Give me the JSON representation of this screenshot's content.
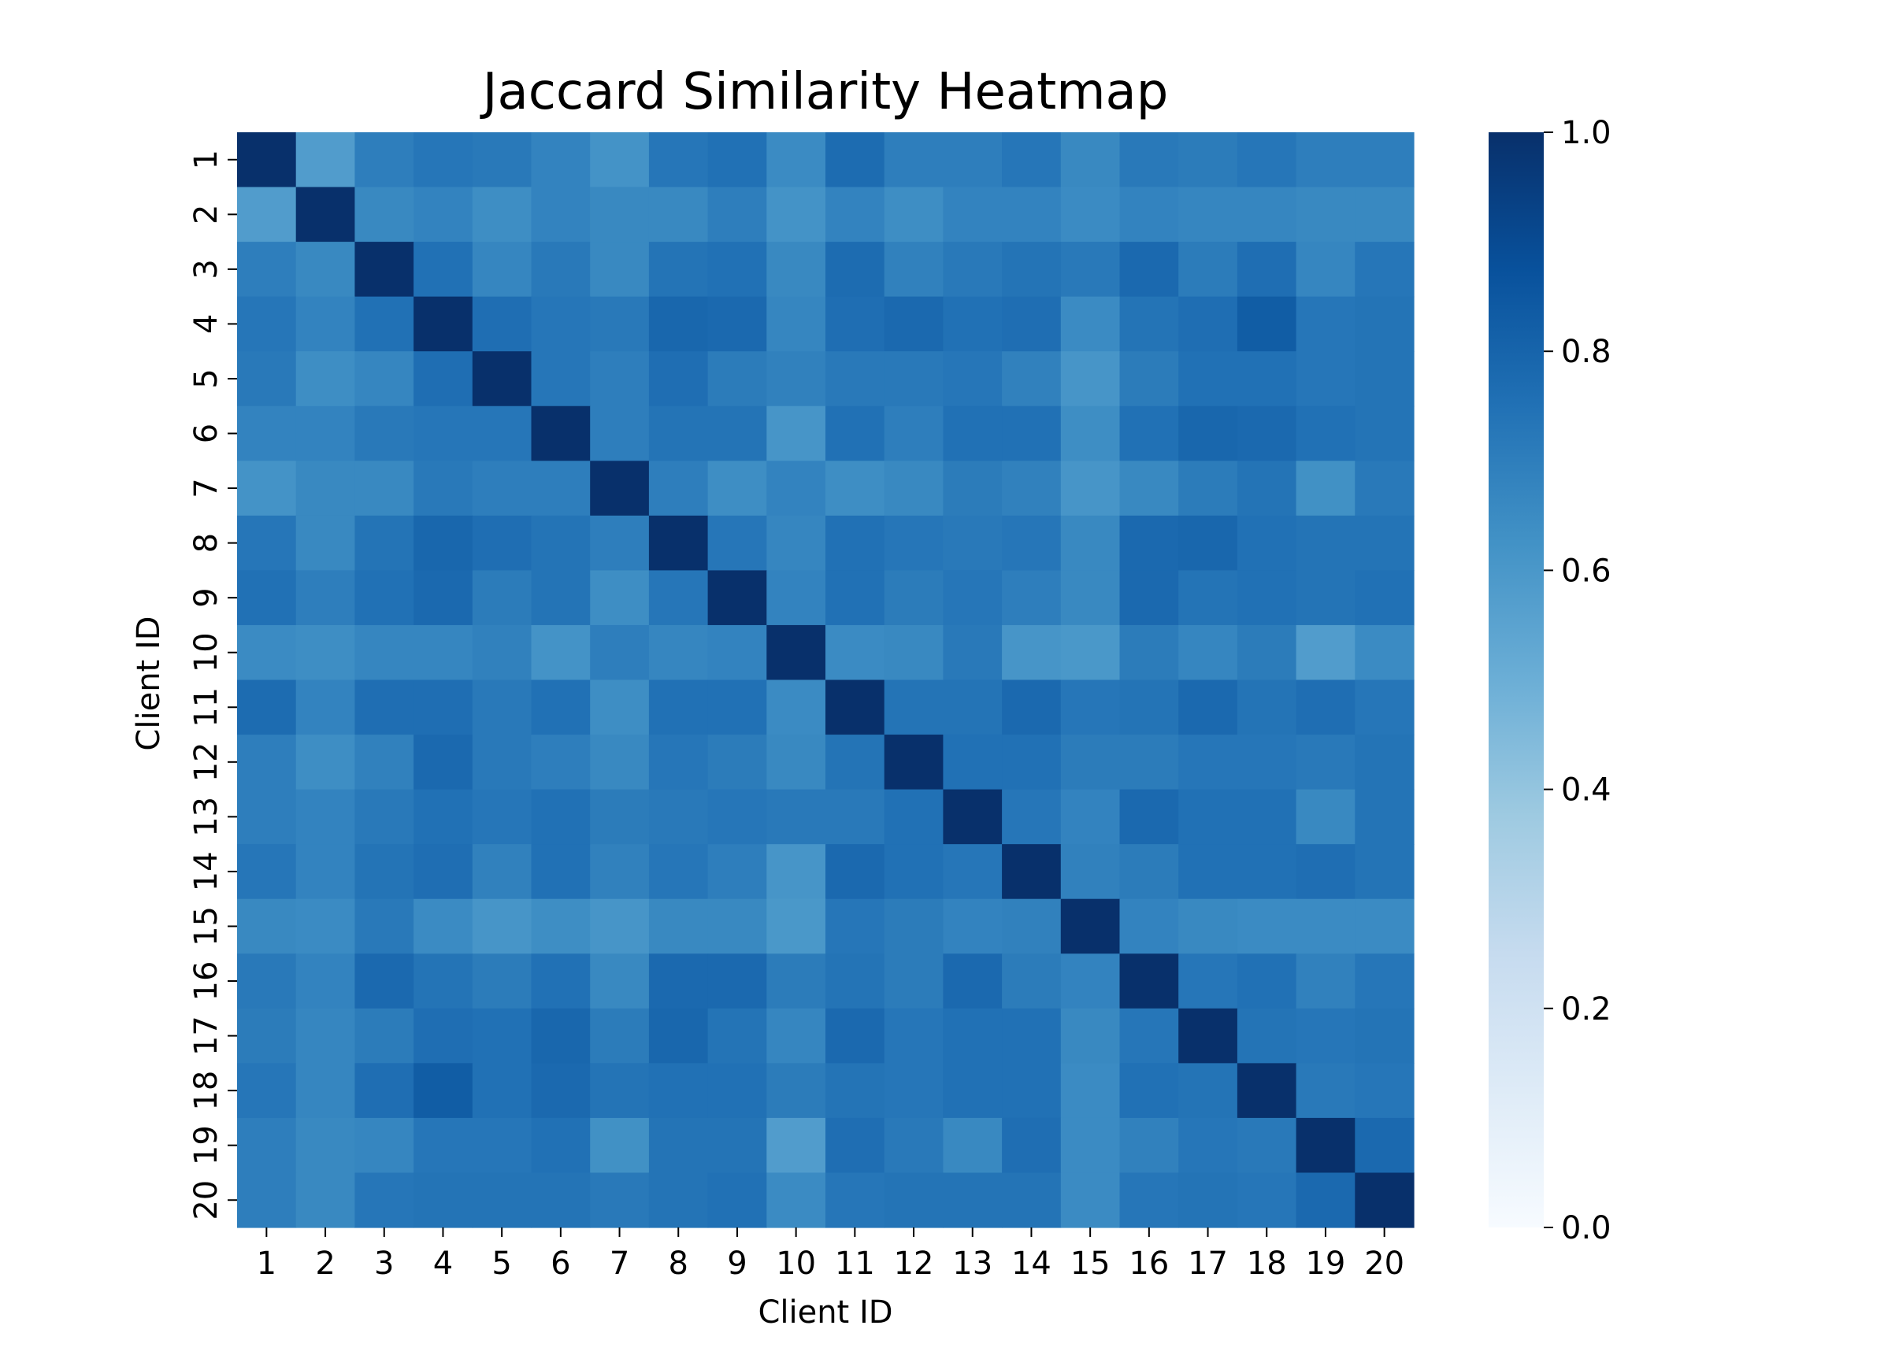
{
  "chart_data": {
    "type": "heatmap",
    "title": "Jaccard Similarity Heatmap",
    "xlabel": "Client ID",
    "ylabel": "Client ID",
    "x_categories": [
      "1",
      "2",
      "3",
      "4",
      "5",
      "6",
      "7",
      "8",
      "9",
      "10",
      "11",
      "12",
      "13",
      "14",
      "15",
      "16",
      "17",
      "18",
      "19",
      "20"
    ],
    "y_categories": [
      "1",
      "2",
      "3",
      "4",
      "5",
      "6",
      "7",
      "8",
      "9",
      "10",
      "11",
      "12",
      "13",
      "14",
      "15",
      "16",
      "17",
      "18",
      "19",
      "20"
    ],
    "values": [
      [
        1.0,
        0.58,
        0.7,
        0.73,
        0.72,
        0.68,
        0.62,
        0.73,
        0.75,
        0.65,
        0.77,
        0.7,
        0.7,
        0.73,
        0.66,
        0.72,
        0.71,
        0.73,
        0.7,
        0.7
      ],
      [
        0.58,
        1.0,
        0.66,
        0.68,
        0.64,
        0.68,
        0.66,
        0.66,
        0.7,
        0.62,
        0.68,
        0.64,
        0.68,
        0.68,
        0.65,
        0.68,
        0.67,
        0.67,
        0.66,
        0.66
      ],
      [
        0.7,
        0.66,
        1.0,
        0.75,
        0.67,
        0.72,
        0.66,
        0.74,
        0.75,
        0.66,
        0.77,
        0.69,
        0.72,
        0.74,
        0.72,
        0.78,
        0.71,
        0.76,
        0.67,
        0.73
      ],
      [
        0.73,
        0.68,
        0.75,
        1.0,
        0.76,
        0.73,
        0.72,
        0.79,
        0.78,
        0.67,
        0.76,
        0.78,
        0.75,
        0.76,
        0.65,
        0.74,
        0.76,
        0.83,
        0.73,
        0.74
      ],
      [
        0.72,
        0.64,
        0.67,
        0.76,
        1.0,
        0.73,
        0.7,
        0.76,
        0.71,
        0.69,
        0.72,
        0.72,
        0.73,
        0.69,
        0.61,
        0.71,
        0.75,
        0.75,
        0.73,
        0.74
      ],
      [
        0.68,
        0.68,
        0.72,
        0.73,
        0.73,
        1.0,
        0.7,
        0.74,
        0.74,
        0.61,
        0.75,
        0.7,
        0.75,
        0.75,
        0.64,
        0.75,
        0.79,
        0.78,
        0.75,
        0.74
      ],
      [
        0.62,
        0.66,
        0.66,
        0.72,
        0.7,
        0.7,
        1.0,
        0.7,
        0.64,
        0.68,
        0.64,
        0.66,
        0.71,
        0.69,
        0.61,
        0.66,
        0.71,
        0.74,
        0.63,
        0.72
      ],
      [
        0.73,
        0.66,
        0.74,
        0.79,
        0.76,
        0.74,
        0.7,
        1.0,
        0.73,
        0.67,
        0.75,
        0.73,
        0.72,
        0.73,
        0.66,
        0.78,
        0.79,
        0.75,
        0.74,
        0.74
      ],
      [
        0.75,
        0.7,
        0.75,
        0.78,
        0.71,
        0.74,
        0.64,
        0.73,
        1.0,
        0.68,
        0.75,
        0.71,
        0.73,
        0.7,
        0.66,
        0.78,
        0.74,
        0.75,
        0.74,
        0.75
      ],
      [
        0.65,
        0.64,
        0.67,
        0.67,
        0.69,
        0.62,
        0.7,
        0.67,
        0.68,
        1.0,
        0.65,
        0.66,
        0.72,
        0.61,
        0.6,
        0.71,
        0.67,
        0.71,
        0.58,
        0.65
      ],
      [
        0.77,
        0.68,
        0.76,
        0.76,
        0.72,
        0.75,
        0.64,
        0.75,
        0.75,
        0.65,
        1.0,
        0.74,
        0.74,
        0.78,
        0.73,
        0.74,
        0.78,
        0.74,
        0.76,
        0.73
      ],
      [
        0.7,
        0.64,
        0.69,
        0.78,
        0.72,
        0.7,
        0.66,
        0.73,
        0.71,
        0.66,
        0.74,
        1.0,
        0.75,
        0.75,
        0.71,
        0.71,
        0.73,
        0.73,
        0.72,
        0.74
      ],
      [
        0.7,
        0.68,
        0.72,
        0.75,
        0.73,
        0.75,
        0.71,
        0.72,
        0.73,
        0.72,
        0.72,
        0.75,
        1.0,
        0.73,
        0.68,
        0.78,
        0.75,
        0.75,
        0.66,
        0.74
      ],
      [
        0.73,
        0.68,
        0.74,
        0.76,
        0.69,
        0.75,
        0.69,
        0.73,
        0.7,
        0.61,
        0.78,
        0.75,
        0.73,
        1.0,
        0.69,
        0.71,
        0.75,
        0.75,
        0.76,
        0.74
      ],
      [
        0.66,
        0.65,
        0.72,
        0.65,
        0.61,
        0.64,
        0.61,
        0.66,
        0.66,
        0.6,
        0.73,
        0.71,
        0.68,
        0.69,
        1.0,
        0.68,
        0.66,
        0.65,
        0.65,
        0.65
      ],
      [
        0.72,
        0.68,
        0.78,
        0.74,
        0.71,
        0.75,
        0.66,
        0.78,
        0.78,
        0.71,
        0.74,
        0.71,
        0.78,
        0.71,
        0.68,
        1.0,
        0.73,
        0.75,
        0.69,
        0.73
      ],
      [
        0.71,
        0.67,
        0.71,
        0.76,
        0.75,
        0.79,
        0.71,
        0.79,
        0.74,
        0.67,
        0.78,
        0.73,
        0.75,
        0.75,
        0.66,
        0.73,
        1.0,
        0.74,
        0.73,
        0.74
      ],
      [
        0.73,
        0.67,
        0.76,
        0.83,
        0.75,
        0.78,
        0.74,
        0.75,
        0.75,
        0.71,
        0.74,
        0.73,
        0.75,
        0.75,
        0.65,
        0.75,
        0.74,
        1.0,
        0.72,
        0.73
      ],
      [
        0.7,
        0.66,
        0.67,
        0.73,
        0.73,
        0.75,
        0.63,
        0.74,
        0.74,
        0.58,
        0.76,
        0.72,
        0.66,
        0.76,
        0.65,
        0.69,
        0.73,
        0.72,
        1.0,
        0.78
      ],
      [
        0.7,
        0.66,
        0.73,
        0.74,
        0.74,
        0.74,
        0.72,
        0.74,
        0.75,
        0.65,
        0.73,
        0.74,
        0.74,
        0.74,
        0.65,
        0.73,
        0.74,
        0.73,
        0.78,
        1.0
      ]
    ],
    "colorbar": {
      "min": 0.0,
      "max": 1.0,
      "ticks": [
        0.0,
        0.2,
        0.4,
        0.6,
        0.8,
        1.0
      ],
      "tick_labels": [
        "0.0",
        "0.2",
        "0.4",
        "0.6",
        "0.8",
        "1.0"
      ],
      "colormap": "Blues"
    },
    "grid": false
  }
}
